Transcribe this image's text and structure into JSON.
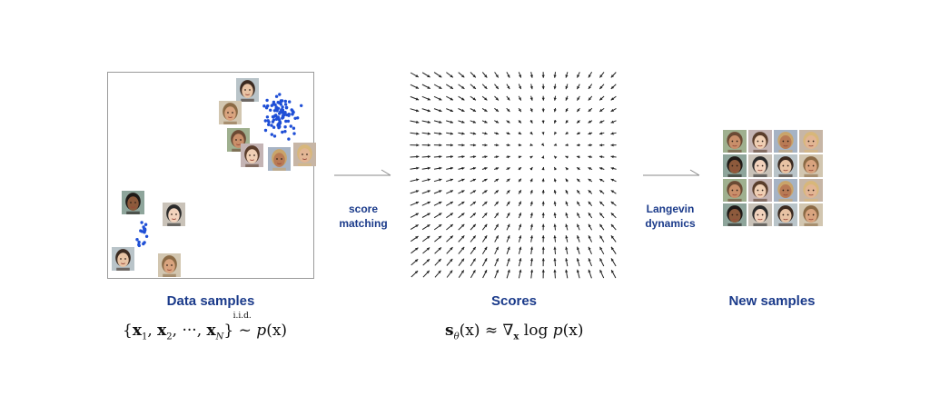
{
  "left_panel": {
    "title": "Data samples",
    "formula": {
      "open": "{",
      "x1": "x",
      "sub1": "1",
      "x2": "x",
      "sub2": "2",
      "dots": "···",
      "xn": "x",
      "subn": "N",
      "close": "}",
      "iid": "i.i.d.",
      "tilde": "~",
      "p": "p",
      "px": "(x)"
    }
  },
  "middle_panel": {
    "title": "Scores",
    "formula": {
      "s": "s",
      "theta": "θ",
      "sx": "(x)",
      "approx": "≈",
      "nabla": "∇",
      "nabla_sub": "x",
      "log": "log",
      "p": "p",
      "px": "(x)"
    }
  },
  "right_panel": {
    "title": "New samples"
  },
  "arrows": [
    {
      "label_line1": "score",
      "label_line2": "matching"
    },
    {
      "label_line1": "Langevin",
      "label_line2": "dynamics"
    }
  ],
  "colors": {
    "heading": "#1a3a8a",
    "dots": "#1f4fd6",
    "arrow": "#8a8a8a",
    "panel_border": "#9a9a9a"
  }
}
